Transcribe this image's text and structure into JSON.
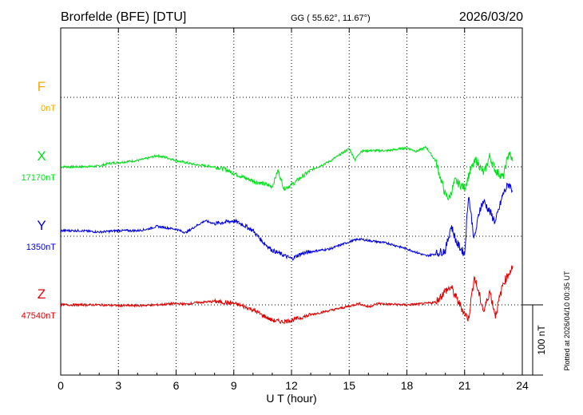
{
  "header": {
    "station": "Brorfelde (BFE)  [DTU]",
    "coords": "GG ( 55.62°,  11.67°)",
    "date": "2026/03/20"
  },
  "footer": {
    "plotted": "Plotted at 2026/04/10 00:35 UT"
  },
  "chart_data": {
    "type": "line",
    "xlabel": "U T (hour)",
    "xlim": [
      0,
      24
    ],
    "xticks": [
      "0",
      "3",
      "6",
      "9",
      "12",
      "15",
      "18",
      "21",
      "24"
    ],
    "scale_bar_label": "100 nT",
    "scale_bar_nT": 100,
    "grid": true,
    "series": [
      {
        "name": "F",
        "baseline_label": "0nT",
        "color": "#f5a800",
        "x": [],
        "y": []
      },
      {
        "name": "X",
        "baseline_label": "17170nT",
        "color": "#00e01a",
        "x": [
          0,
          1,
          2,
          2.5,
          3,
          4,
          4.5,
          5,
          5.5,
          6,
          7,
          8,
          8.5,
          9,
          9.5,
          10,
          10.5,
          11,
          11.3,
          11.6,
          12,
          12.5,
          13,
          14,
          15,
          15.3,
          15.6,
          16,
          17,
          18,
          18.5,
          19,
          19.5,
          20,
          20.2,
          20.5,
          21,
          21.3,
          21.6,
          22,
          22.3,
          22.6,
          23,
          23.3,
          23.5
        ],
        "y": [
          0,
          0,
          1,
          5,
          6,
          9,
          12,
          16,
          13,
          9,
          3,
          0,
          -3,
          -9,
          -15,
          -20,
          -24,
          -28,
          -5,
          -31,
          -26,
          -15,
          -5,
          8,
          26,
          10,
          22,
          23,
          23,
          27,
          22,
          28,
          8,
          -40,
          -45,
          -20,
          -30,
          -5,
          10,
          -10,
          15,
          -5,
          -15,
          20,
          8
        ]
      },
      {
        "name": "Y",
        "baseline_label": "1350nT",
        "color": "#0000e0",
        "x": [
          0,
          1,
          2,
          3,
          4,
          4.5,
          5,
          5.5,
          6,
          6.5,
          7,
          7.5,
          8,
          8.5,
          9,
          9.5,
          10,
          10.5,
          11,
          11.5,
          12,
          12.5,
          13,
          14,
          15,
          15.5,
          16,
          17,
          18,
          19,
          19.5,
          20,
          20.3,
          20.6,
          21,
          21.2,
          21.5,
          21.8,
          22,
          22.3,
          22.6,
          23,
          23.3,
          23.5
        ],
        "y": [
          8,
          8,
          6,
          8,
          8,
          10,
          14,
          12,
          10,
          5,
          14,
          22,
          18,
          20,
          22,
          16,
          8,
          -8,
          -20,
          -26,
          -32,
          -25,
          -22,
          -18,
          -8,
          -4,
          -6,
          -10,
          -18,
          -28,
          -25,
          -20,
          15,
          -10,
          -25,
          60,
          -5,
          40,
          50,
          35,
          20,
          60,
          75,
          65
        ]
      },
      {
        "name": "Z",
        "baseline_label": "47540nT",
        "color": "#e00000",
        "x": [
          0,
          1,
          2,
          3,
          4,
          5,
          6,
          6.5,
          7,
          8,
          9,
          9.5,
          10,
          10.5,
          11,
          11.5,
          12,
          12.5,
          13,
          14,
          15,
          15.5,
          16,
          16.5,
          17,
          18,
          19,
          19.5,
          20,
          20.3,
          20.6,
          21,
          21.2,
          21.5,
          21.8,
          22,
          22.3,
          22.6,
          23,
          23.5
        ],
        "y": [
          0,
          0,
          0,
          -1,
          -1,
          0,
          2,
          1,
          3,
          5,
          2,
          -2,
          -7,
          -15,
          -22,
          -24,
          -22,
          -18,
          -14,
          -8,
          -2,
          2,
          -3,
          2,
          1,
          0,
          2,
          4,
          20,
          25,
          8,
          -12,
          -20,
          40,
          10,
          -10,
          20,
          -15,
          30,
          55
        ]
      }
    ]
  }
}
